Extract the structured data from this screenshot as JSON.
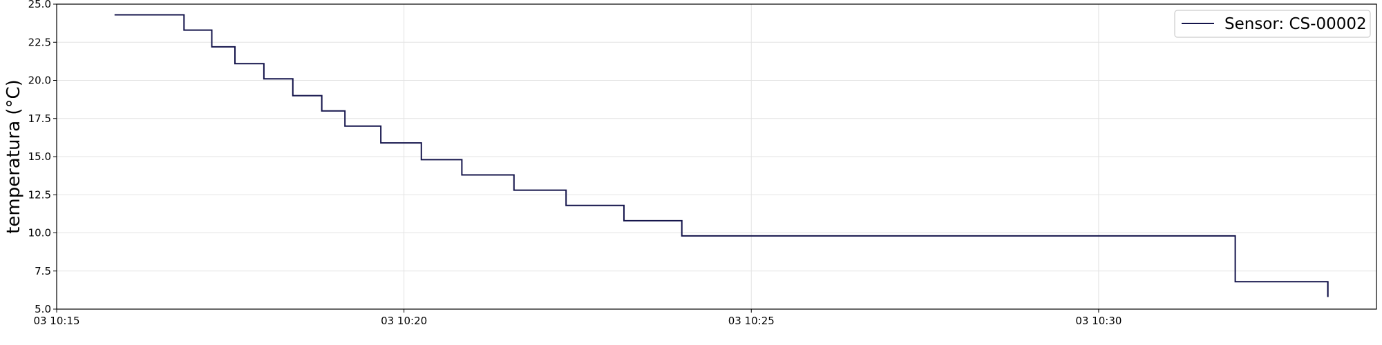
{
  "chart_data": {
    "type": "line",
    "step": true,
    "title": "",
    "xlabel": "",
    "ylabel": "temperatura (°C)",
    "grid": true,
    "legend_position": "top-right",
    "xlim": [
      "10:15:00",
      "10:34:00"
    ],
    "ylim": [
      5.0,
      25.0
    ],
    "y_ticks": [
      "5.0",
      "7.5",
      "10.0",
      "12.5",
      "15.0",
      "17.5",
      "20.0",
      "22.5",
      "25.0"
    ],
    "x_ticks": [
      {
        "time": "10:15:00",
        "label": "03 10:15"
      },
      {
        "time": "10:20:00",
        "label": "03 10:20"
      },
      {
        "time": "10:25:00",
        "label": "03 10:25"
      },
      {
        "time": "10:30:00",
        "label": "03 10:30"
      }
    ],
    "series": [
      {
        "name": "Sensor: CS-00002",
        "color": "#14144b",
        "points": [
          {
            "x": "10:15:50",
            "y": 24.3
          },
          {
            "x": "10:16:50",
            "y": 23.3
          },
          {
            "x": "10:17:14",
            "y": 22.2
          },
          {
            "x": "10:17:34",
            "y": 21.1
          },
          {
            "x": "10:17:59",
            "y": 20.1
          },
          {
            "x": "10:18:24",
            "y": 19.0
          },
          {
            "x": "10:18:49",
            "y": 18.0
          },
          {
            "x": "10:19:09",
            "y": 17.0
          },
          {
            "x": "10:19:40",
            "y": 15.9
          },
          {
            "x": "10:20:15",
            "y": 14.8
          },
          {
            "x": "10:20:50",
            "y": 13.8
          },
          {
            "x": "10:21:35",
            "y": 12.8
          },
          {
            "x": "10:22:20",
            "y": 11.8
          },
          {
            "x": "10:23:10",
            "y": 10.8
          },
          {
            "x": "10:24:00",
            "y": 9.8
          },
          {
            "x": "10:31:58",
            "y": 6.8
          },
          {
            "x": "10:33:18",
            "y": 5.8
          }
        ]
      }
    ]
  }
}
